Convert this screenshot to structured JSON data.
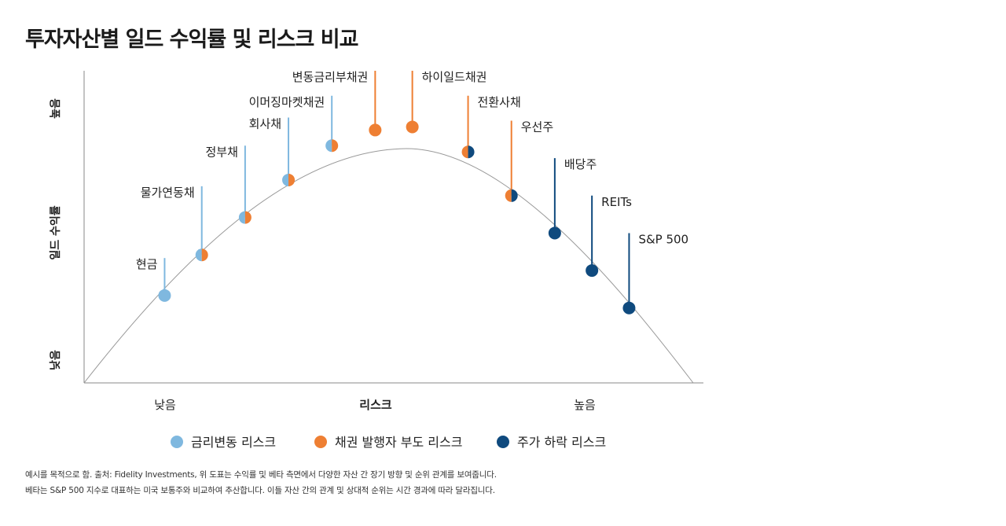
{
  "chart_data": {
    "type": "scatter",
    "title": "투자자산별 일드 수익률 및 리스크 비교",
    "xlabel": "리스크",
    "ylabel": "일드 수익률",
    "x_ticks": [
      "낮음",
      "리스크",
      "높음"
    ],
    "y_ticks": [
      "낮음",
      "높음"
    ],
    "risk_types": [
      {
        "key": "rate",
        "name": "금리변동 리스크",
        "color": "#7fb8df"
      },
      {
        "key": "credit",
        "name": "채권 발행자 부도 리스크",
        "color": "#ee7f33"
      },
      {
        "key": "equity",
        "name": "주가 하락 리스크",
        "color": "#0f4a7e"
      }
    ],
    "legend_position": "bottom",
    "points": [
      {
        "label": "현금",
        "x": 0.13,
        "y": 0.28,
        "left": "rate",
        "right": "rate",
        "stem": "rate",
        "label_top": 0.4
      },
      {
        "label": "물가연동채",
        "x": 0.19,
        "y": 0.41,
        "left": "rate",
        "right": "credit",
        "stem": "rate",
        "label_top": 0.63
      },
      {
        "label": "정부채",
        "x": 0.26,
        "y": 0.53,
        "left": "rate",
        "right": "credit",
        "stem": "rate",
        "label_top": 0.76
      },
      {
        "label": "회사채",
        "x": 0.33,
        "y": 0.65,
        "left": "rate",
        "right": "credit",
        "stem": "rate",
        "label_top": 0.85
      },
      {
        "label": "이머징마켓채권",
        "x": 0.4,
        "y": 0.76,
        "left": "rate",
        "right": "credit",
        "stem": "rate",
        "label_top": 0.92
      },
      {
        "label": "변동금리부채권",
        "x": 0.47,
        "y": 0.81,
        "left": "credit",
        "right": "credit",
        "stem": "credit",
        "label_top": 1.0
      },
      {
        "label": "하이일드채권",
        "x": 0.53,
        "y": 0.82,
        "left": "credit",
        "right": "credit",
        "stem": "credit",
        "label_top": 1.0
      },
      {
        "label": "전환사채",
        "x": 0.62,
        "y": 0.74,
        "left": "credit",
        "right": "equity",
        "stem": "credit",
        "label_top": 0.92
      },
      {
        "label": "우선주",
        "x": 0.69,
        "y": 0.6,
        "left": "credit",
        "right": "equity",
        "stem": "credit",
        "label_top": 0.84
      },
      {
        "label": "배당주",
        "x": 0.76,
        "y": 0.48,
        "left": "equity",
        "right": "equity",
        "stem": "equity",
        "label_top": 0.72
      },
      {
        "label": "REITs",
        "x": 0.82,
        "y": 0.36,
        "left": "equity",
        "right": "equity",
        "stem": "equity",
        "label_top": 0.6
      },
      {
        "label": "S&P 500",
        "x": 0.88,
        "y": 0.24,
        "left": "equity",
        "right": "equity",
        "stem": "equity",
        "label_top": 0.48
      }
    ]
  },
  "notes": [
    "예시를 목적으로 함. 출처: Fidelity Investments, 위 도표는 수익률 및 베타 측면에서 다양한 자산 간 장기 방향 및 순위 관계를 보여줍니다.",
    "베타는 S&P 500 지수로 대표하는 미국 보통주와 비교하여 추산합니다. 이들 자산 간의 관계 및 상대적 순위는 시간 경과에 따라 달라집니다."
  ]
}
